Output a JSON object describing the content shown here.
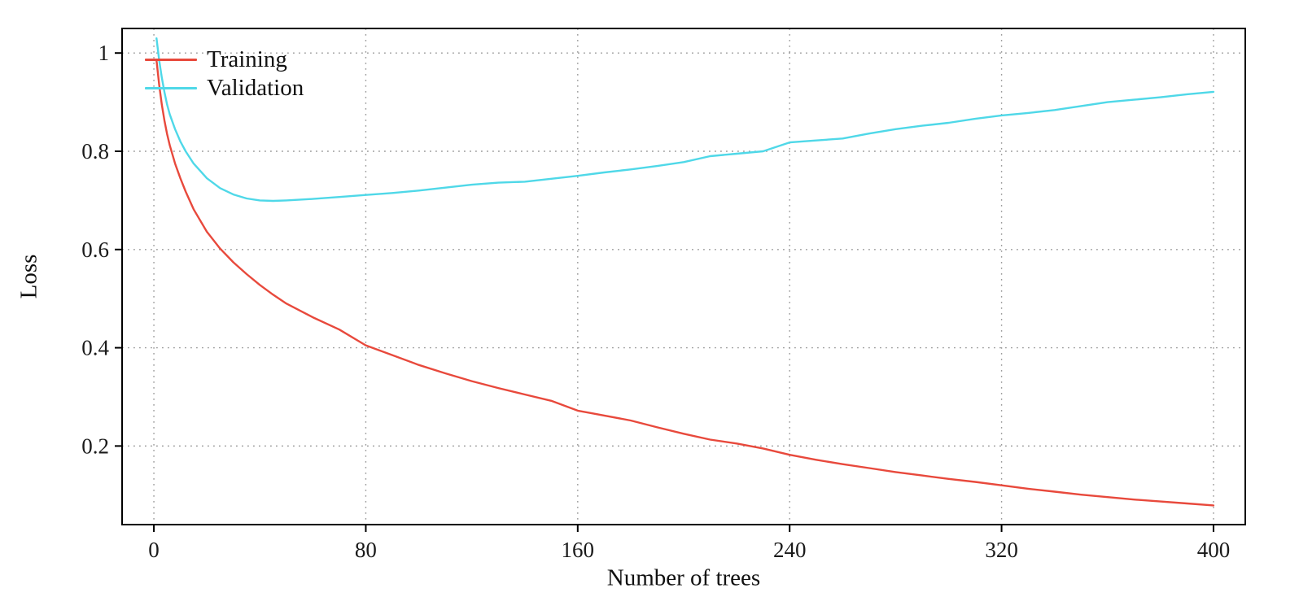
{
  "chart_data": {
    "type": "line",
    "title": "",
    "xlabel": "Number of trees",
    "ylabel": "Loss",
    "xlim": [
      -12,
      412
    ],
    "ylim": [
      0.04,
      1.05
    ],
    "xticks": [
      0,
      80,
      160,
      240,
      320,
      400
    ],
    "xtick_labels": [
      "0",
      "80",
      "160",
      "240",
      "320",
      "400"
    ],
    "yticks": [
      0.2,
      0.4,
      0.6,
      0.8,
      1
    ],
    "ytick_labels": [
      "0.2",
      "0.4",
      "0.6",
      "0.8",
      "1"
    ],
    "grid": "dotted",
    "grid_color": "#9a9a9a",
    "frame_color": "#000000",
    "legend_position": "top-left-inside",
    "x": [
      1,
      2,
      3,
      4,
      5,
      6,
      8,
      10,
      12,
      15,
      20,
      25,
      30,
      35,
      40,
      45,
      50,
      60,
      70,
      80,
      90,
      100,
      110,
      120,
      130,
      140,
      150,
      160,
      170,
      180,
      190,
      200,
      210,
      220,
      230,
      240,
      250,
      260,
      270,
      280,
      290,
      300,
      310,
      320,
      330,
      340,
      350,
      360,
      370,
      380,
      390,
      400
    ],
    "series": [
      {
        "name": "Training",
        "color": "#e8493c",
        "values": [
          0.985,
          0.935,
          0.895,
          0.862,
          0.835,
          0.812,
          0.775,
          0.745,
          0.718,
          0.682,
          0.636,
          0.602,
          0.574,
          0.55,
          0.528,
          0.508,
          0.49,
          0.462,
          0.437,
          0.405,
          0.385,
          0.365,
          0.348,
          0.332,
          0.318,
          0.305,
          0.292,
          0.272,
          0.262,
          0.252,
          0.238,
          0.225,
          0.213,
          0.205,
          0.195,
          0.182,
          0.172,
          0.163,
          0.155,
          0.147,
          0.14,
          0.133,
          0.127,
          0.12,
          0.113,
          0.107,
          0.101,
          0.096,
          0.091,
          0.087,
          0.083,
          0.079
        ]
      },
      {
        "name": "Validation",
        "color": "#4fd8e8",
        "values": [
          1.03,
          0.985,
          0.95,
          0.92,
          0.895,
          0.875,
          0.845,
          0.82,
          0.8,
          0.775,
          0.745,
          0.725,
          0.712,
          0.704,
          0.7,
          0.699,
          0.7,
          0.703,
          0.707,
          0.711,
          0.715,
          0.72,
          0.726,
          0.732,
          0.736,
          0.738,
          0.744,
          0.75,
          0.757,
          0.763,
          0.77,
          0.778,
          0.79,
          0.795,
          0.8,
          0.818,
          0.822,
          0.826,
          0.836,
          0.845,
          0.852,
          0.858,
          0.866,
          0.873,
          0.878,
          0.884,
          0.892,
          0.9,
          0.905,
          0.91,
          0.916,
          0.921
        ]
      }
    ]
  }
}
